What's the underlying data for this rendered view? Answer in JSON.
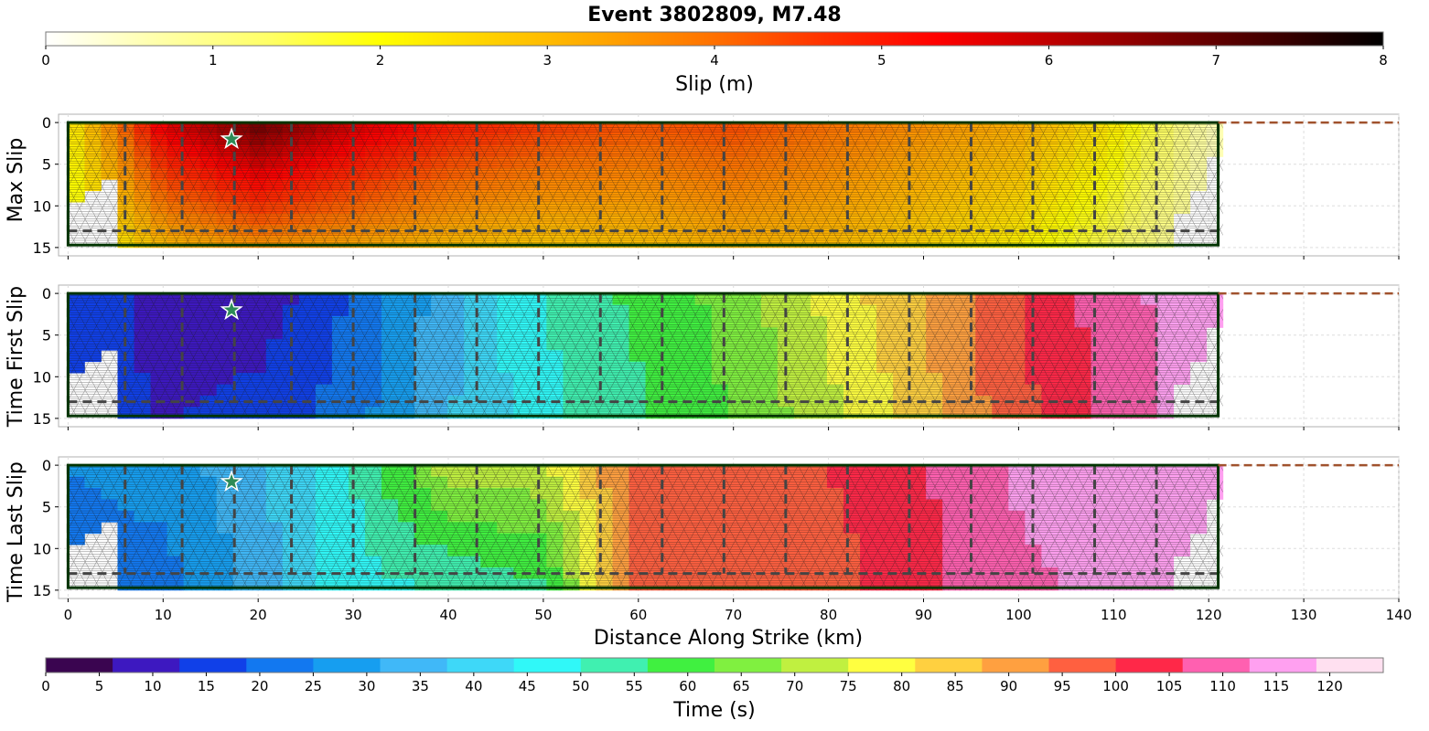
{
  "title": "Event 3802809, M7.48",
  "colors": {
    "slip_cmap": [
      "#ffffff",
      "#ffffaa",
      "#ffff66",
      "#ffff00",
      "#ffd000",
      "#ffa500",
      "#ff7000",
      "#ff3000",
      "#ff0000",
      "#c00000",
      "#800000",
      "#400000",
      "#000000"
    ],
    "time_cmap": [
      "#3a0550",
      "#3d18c0",
      "#1040e8",
      "#1278f0",
      "#169ef0",
      "#40b8f8",
      "#3ed8f8",
      "#30f8f8",
      "#40f0b0",
      "#40f040",
      "#80f040",
      "#c0f040",
      "#ffff40",
      "#ffd040",
      "#ffa040",
      "#ff6040",
      "#ff2848",
      "#ff60b0",
      "#ffa0f0",
      "#ffe0f0"
    ],
    "fault_outline": "#003300",
    "section_dash": "#444444",
    "surface_trace": "#a0522d",
    "hypocenter_star": "#2e8b57"
  },
  "chart_data": [
    {
      "type": "colorbar",
      "label": "Slip (m)",
      "ticks": [
        "0",
        "1",
        "2",
        "3",
        "4",
        "5",
        "6",
        "7",
        "8"
      ],
      "range": [
        0,
        8
      ]
    },
    {
      "type": "heatmap",
      "ylabel": "Max Slip",
      "quantity": "slip_m",
      "yticks": [
        "0",
        "5",
        "10",
        "15"
      ],
      "ylim": [
        16,
        -1
      ],
      "xlim": [
        -1,
        140
      ],
      "along_strike_km": [
        0,
        10,
        20,
        30,
        40,
        50,
        60,
        70,
        80,
        90,
        100,
        110,
        120
      ],
      "value_top": [
        2.1,
        5.6,
        6.9,
        5.8,
        5.0,
        4.6,
        4.3,
        4.4,
        4.0,
        3.6,
        3.2,
        2.3,
        0.6
      ],
      "value_bottom": [
        1.5,
        3.0,
        3.5,
        3.3,
        3.0,
        2.8,
        2.9,
        3.1,
        3.0,
        2.6,
        2.2,
        1.4,
        0.5
      ],
      "hypocenter": {
        "x_km": 17.2,
        "depth_km": 2
      }
    },
    {
      "type": "heatmap",
      "ylabel": "Time First Slip",
      "quantity": "time_s",
      "yticks": [
        "0",
        "5",
        "10",
        "15"
      ],
      "ylim": [
        16,
        -1
      ],
      "xlim": [
        -1,
        140
      ],
      "along_strike_km": [
        0,
        10,
        20,
        30,
        40,
        50,
        60,
        70,
        80,
        90,
        100,
        110,
        120
      ],
      "value_top": [
        17,
        10,
        8,
        20,
        35,
        50,
        58,
        65,
        77,
        88,
        100,
        110,
        117
      ],
      "value_bottom": [
        17,
        12,
        15,
        22,
        37,
        48,
        55,
        63,
        73,
        85,
        98,
        108,
        117
      ],
      "hypocenter": {
        "x_km": 17.2,
        "depth_km": 2
      }
    },
    {
      "type": "heatmap",
      "ylabel": "Time Last Slip",
      "quantity": "time_s",
      "yticks": [
        "0",
        "5",
        "10",
        "15"
      ],
      "ylim": [
        16,
        -1
      ],
      "xlim": [
        -1,
        140
      ],
      "along_strike_km": [
        0,
        10,
        20,
        30,
        40,
        50,
        60,
        70,
        80,
        90,
        100,
        110,
        120
      ],
      "value_top": [
        25,
        28,
        36,
        50,
        72,
        73,
        97,
        98,
        100,
        106,
        113,
        114,
        118
      ],
      "value_bottom": [
        22,
        22,
        34,
        48,
        50,
        55,
        97,
        98,
        97,
        104,
        112,
        113,
        118
      ],
      "hypocenter": {
        "x_km": 17.2,
        "depth_km": 2
      }
    },
    {
      "type": "axis",
      "xlabel": "Distance Along Strike (km)",
      "xticks": [
        "0",
        "10",
        "20",
        "30",
        "40",
        "50",
        "60",
        "70",
        "80",
        "90",
        "100",
        "110",
        "120",
        "130",
        "140"
      ]
    },
    {
      "type": "colorbar",
      "label": "Time (s)",
      "ticks": [
        "0",
        "5",
        "10",
        "15",
        "20",
        "25",
        "30",
        "35",
        "40",
        "45",
        "50",
        "55",
        "60",
        "65",
        "70",
        "75",
        "80",
        "85",
        "90",
        "95",
        "100",
        "105",
        "110",
        "115",
        "120"
      ],
      "range": [
        0,
        125
      ]
    }
  ]
}
